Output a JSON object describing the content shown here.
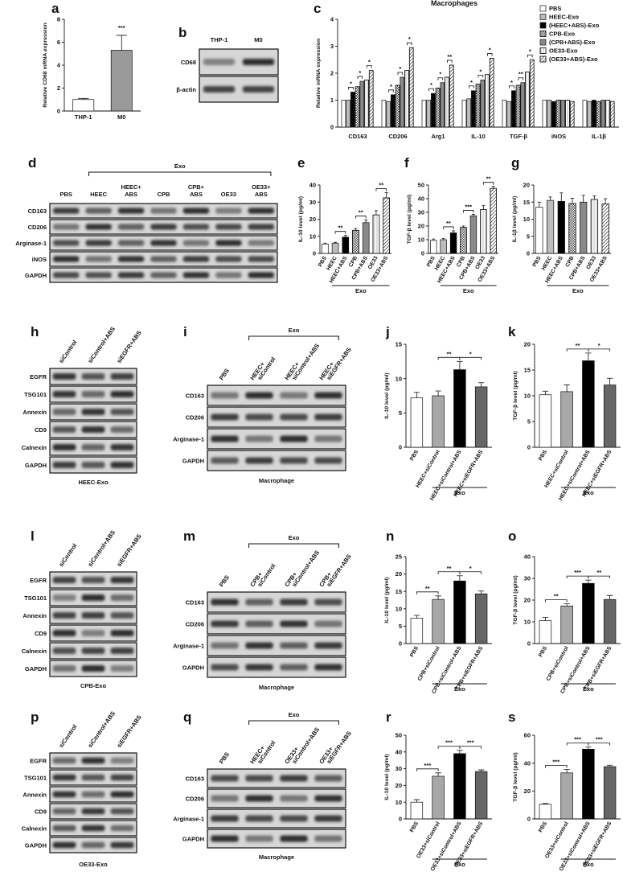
{
  "blots": [
    {
      "panel": "b",
      "columns": [
        [
          "THP-1"
        ],
        [
          "M0"
        ]
      ],
      "rows": [
        "CD68",
        "β-actin"
      ],
      "rotated_labels": false
    },
    {
      "panel": "d",
      "columns": [
        [
          "PBS"
        ],
        [
          "HEEC"
        ],
        [
          "HEEC+",
          "ABS"
        ],
        [
          "CPB"
        ],
        [
          "CPB+",
          "ABS"
        ],
        [
          "OE33"
        ],
        [
          "OE33+",
          "ABS"
        ]
      ],
      "rows": [
        "CD163",
        "CD206",
        "Arginase-1",
        "iNOS",
        "GAPDH"
      ],
      "rotated_labels": false,
      "group": {
        "label": "Exo",
        "from": 1,
        "to": 6
      }
    },
    {
      "panel": "h",
      "columns": [
        [
          "siControl"
        ],
        [
          "siControl+ABS"
        ],
        [
          "siEGFR+ABS"
        ]
      ],
      "rows": [
        "EGFR",
        "TSG101",
        "Annexin",
        "CD9",
        "Calnexin",
        "GAPDH"
      ],
      "rotated_labels": true,
      "caption": "HEEC-Exo"
    },
    {
      "panel": "i",
      "columns": [
        [
          "PBS"
        ],
        [
          "HEEC+",
          "siControl"
        ],
        [
          "HEEC+",
          "siControl+ABS"
        ],
        [
          "HEEC+",
          "siEGFR+ABS"
        ]
      ],
      "rows": [
        "CD163",
        "CD206",
        "Arginase-1",
        "GAPDH"
      ],
      "rotated_labels": true,
      "group": {
        "label": "Exo",
        "from": 1,
        "to": 3
      },
      "caption": "Macrophage"
    },
    {
      "panel": "l",
      "columns": [
        [
          "siControl"
        ],
        [
          "siControl+ABS"
        ],
        [
          "siEGFR+ABS"
        ]
      ],
      "rows": [
        "EGFR",
        "TSG101",
        "Annexin",
        "CD9",
        "Calnexin",
        "GAPDH"
      ],
      "rotated_labels": true,
      "caption": "CPB-Exo"
    },
    {
      "panel": "m",
      "columns": [
        [
          "PBS"
        ],
        [
          "CPB+",
          "siControl"
        ],
        [
          "CPB+",
          "siControl+ABS"
        ],
        [
          "CPB+",
          "siEGFR+ABS"
        ]
      ],
      "rows": [
        "CD163",
        "CD206",
        "Arginase-1",
        "GAPDH"
      ],
      "rotated_labels": true,
      "group": {
        "label": "Exo",
        "from": 1,
        "to": 3
      },
      "caption": "Macrophage"
    },
    {
      "panel": "p",
      "columns": [
        [
          "siControl"
        ],
        [
          "siControl+ABS"
        ],
        [
          "siEGFR+ABS"
        ]
      ],
      "rows": [
        "EGFR",
        "TSG101",
        "Annexin",
        "CD9",
        "Calnexin",
        "GAPDH"
      ],
      "rotated_labels": true,
      "caption": "OE33-Exo"
    },
    {
      "panel": "q",
      "columns": [
        [
          "PBS"
        ],
        [
          "HEEC+",
          "siControl"
        ],
        [
          "OE33+",
          "siControl+ABS"
        ],
        [
          "OE33+",
          "siEGFR+ABS"
        ]
      ],
      "rows": [
        "CD163",
        "CD206",
        "Arginase-1",
        "GAPDH"
      ],
      "rotated_labels": true,
      "group": {
        "label": "Exo",
        "from": 1,
        "to": 3
      },
      "caption": "Macrophage"
    }
  ],
  "chart_data": [
    {
      "type": "bar",
      "panel": "a",
      "ylabel": "Relative CD68 mRNA expression",
      "categories": [
        "THP-1",
        "M0"
      ],
      "values": [
        1,
        5.3
      ],
      "errors": [
        0.1,
        1.3
      ],
      "colors": [
        "#ffffff",
        "#9a9a9a"
      ],
      "patterns": [
        "solid",
        "solid"
      ],
      "ylim": [
        0,
        8
      ],
      "yticks": [
        0,
        2,
        4,
        6,
        8
      ],
      "rotated_labels": false,
      "annotations": [
        {
          "text": "***",
          "from": 1,
          "to": 1
        }
      ]
    },
    {
      "type": "grouped_bar",
      "panel": "c",
      "title": "Macrophages",
      "ylabel": "Relative mRNA expression",
      "categories": [
        "CD163",
        "CD206",
        "Arg1",
        "IL-10",
        "TGF-β",
        "iNOS",
        "IL-1β"
      ],
      "ylim": [
        0,
        4
      ],
      "yticks": [
        0,
        1,
        2,
        3,
        4
      ],
      "series": [
        {
          "name": "PBS",
          "color": "#ffffff",
          "pattern": "solid",
          "values": [
            1,
            1,
            1,
            1,
            1,
            1,
            1
          ]
        },
        {
          "name": "HEEC-Exo",
          "color": "#bdbdbd",
          "pattern": "solid",
          "values": [
            1,
            0.95,
            1,
            1.05,
            0.95,
            1,
            0.95
          ]
        },
        {
          "name": "(HEEC+ABS)-Exo",
          "color": "#000000",
          "pattern": "solid",
          "values": [
            1.3,
            1.2,
            1.25,
            1.35,
            1.35,
            0.95,
            1
          ]
        },
        {
          "name": "CPB-Exo",
          "color": "#ffffff",
          "pattern": "grid",
          "values": [
            1.5,
            1.55,
            1.45,
            1.6,
            1.55,
            1,
            0.95
          ]
        },
        {
          "name": "(CPB+ABS)-Exo",
          "color": "#8a8a8a",
          "pattern": "solid",
          "values": [
            1.7,
            1.85,
            1.65,
            1.75,
            1.65,
            1,
            1
          ]
        },
        {
          "name": "OE33-Exo",
          "color": "#ffffff",
          "pattern": "vlines",
          "values": [
            1.75,
            2.1,
            1.85,
            1.95,
            2.05,
            1,
            1
          ]
        },
        {
          "name": "(OE33+ABS)-Exo",
          "color": "#ffffff",
          "pattern": "hatch",
          "values": [
            2.1,
            2.95,
            2.3,
            2.55,
            2.5,
            0.95,
            0.95
          ]
        }
      ],
      "annotations": [
        {
          "category": 0,
          "from": 1,
          "to": 2,
          "text": "*"
        },
        {
          "category": 0,
          "from": 3,
          "to": 4,
          "text": "*"
        },
        {
          "category": 0,
          "from": 5,
          "to": 6,
          "text": "*"
        },
        {
          "category": 1,
          "from": 1,
          "to": 2,
          "text": "*"
        },
        {
          "category": 1,
          "from": 3,
          "to": 4,
          "text": "*"
        },
        {
          "category": 1,
          "from": 5,
          "to": 6,
          "text": "*"
        },
        {
          "category": 2,
          "from": 1,
          "to": 2,
          "text": "*"
        },
        {
          "category": 2,
          "from": 3,
          "to": 4,
          "text": "*"
        },
        {
          "category": 2,
          "from": 5,
          "to": 6,
          "text": "**"
        },
        {
          "category": 3,
          "from": 1,
          "to": 2,
          "text": "*"
        },
        {
          "category": 3,
          "from": 3,
          "to": 4,
          "text": "*"
        },
        {
          "category": 3,
          "from": 5,
          "to": 6,
          "text": "*"
        },
        {
          "category": 4,
          "from": 1,
          "to": 2,
          "text": "*"
        },
        {
          "category": 4,
          "from": 3,
          "to": 4,
          "text": "**"
        },
        {
          "category": 4,
          "from": 5,
          "to": 6,
          "text": "*"
        }
      ]
    },
    {
      "type": "bar",
      "panel": "e",
      "ylabel": "IL-10 level (pg/ml)",
      "categories": [
        "PBS",
        "HEEC",
        "HEEC+ABS",
        "CPB",
        "CPB+ABS",
        "OE33",
        "OE33+ABS"
      ],
      "values": [
        5.5,
        6,
        9.5,
        13.5,
        18,
        22.5,
        32.5
      ],
      "errors": [
        0.5,
        0.5,
        1,
        1,
        1.5,
        2.5,
        3
      ],
      "colors": [
        "#ffffff",
        "#bdbdbd",
        "#000000",
        "#ffffff",
        "#8a8a8a",
        "#ffffff",
        "#ffffff"
      ],
      "patterns": [
        "solid",
        "solid",
        "solid",
        "grid",
        "solid",
        "vlines",
        "hatch"
      ],
      "ylim": [
        0,
        40
      ],
      "yticks": [
        0,
        10,
        20,
        30,
        40
      ],
      "rotated_labels": true,
      "annotations": [
        {
          "text": "**",
          "from": 1,
          "to": 2
        },
        {
          "text": "**",
          "from": 3,
          "to": 4
        },
        {
          "text": "**",
          "from": 5,
          "to": 6
        }
      ],
      "group": {
        "label": "Exo",
        "from": 1,
        "to": 6
      }
    },
    {
      "type": "bar",
      "panel": "f",
      "ylabel": "TGF-β level (pg/ml)",
      "categories": [
        "PBS",
        "HEEC",
        "HEEC+ABS",
        "CPB",
        "CPB+ABS",
        "OE33",
        "OE33+ABS"
      ],
      "values": [
        9.5,
        10,
        15,
        19,
        27.5,
        32,
        47.5
      ],
      "errors": [
        1,
        0.8,
        1.5,
        1,
        1,
        3,
        1.5
      ],
      "colors": [
        "#ffffff",
        "#bdbdbd",
        "#000000",
        "#ffffff",
        "#8a8a8a",
        "#ffffff",
        "#ffffff"
      ],
      "patterns": [
        "solid",
        "solid",
        "solid",
        "grid",
        "solid",
        "vlines",
        "hatch"
      ],
      "ylim": [
        0,
        50
      ],
      "yticks": [
        0,
        10,
        20,
        30,
        40,
        50
      ],
      "rotated_labels": true,
      "annotations": [
        {
          "text": "**",
          "from": 1,
          "to": 2
        },
        {
          "text": "***",
          "from": 3,
          "to": 4
        },
        {
          "text": "**",
          "from": 5,
          "to": 6
        }
      ],
      "group": {
        "label": "Exo",
        "from": 1,
        "to": 6
      }
    },
    {
      "type": "bar",
      "panel": "g",
      "ylabel": "IL-1β level (pg/ml)",
      "categories": [
        "PBS",
        "HEEC",
        "HEEC+ABS",
        "CPB",
        "CPB+ABS",
        "OE33",
        "OE33+ABS"
      ],
      "values": [
        13.5,
        15.5,
        15.2,
        14.6,
        15,
        15.8,
        14.5
      ],
      "errors": [
        1.5,
        1,
        2.5,
        1.5,
        2,
        1,
        1.5
      ],
      "colors": [
        "#ffffff",
        "#bdbdbd",
        "#000000",
        "#ffffff",
        "#8a8a8a",
        "#ffffff",
        "#ffffff"
      ],
      "patterns": [
        "solid",
        "solid",
        "solid",
        "grid",
        "solid",
        "vlines",
        "hatch"
      ],
      "ylim": [
        0,
        20
      ],
      "yticks": [
        0,
        5,
        10,
        15,
        20
      ],
      "rotated_labels": true,
      "annotations": [],
      "group": {
        "label": "Exo",
        "from": 1,
        "to": 6
      }
    },
    {
      "type": "bar",
      "panel": "j",
      "ylabel": "IL-10 level (pg/ml)",
      "categories": [
        "PBS",
        "HEEC+siControl",
        "HEEC+siControl+ABS",
        "HEEC+siEGFR+ABS"
      ],
      "values": [
        7.2,
        7.5,
        11.3,
        8.8
      ],
      "errors": [
        0.8,
        0.7,
        1.2,
        0.6
      ],
      "colors": [
        "#ffffff",
        "#a8a8a8",
        "#000000",
        "#666666"
      ],
      "patterns": [
        "solid",
        "solid",
        "solid",
        "solid"
      ],
      "ylim": [
        0,
        15
      ],
      "yticks": [
        0,
        5,
        10,
        15
      ],
      "rotated_labels": true,
      "annotations": [
        {
          "text": "**",
          "from": 1,
          "to": 2
        },
        {
          "text": "*",
          "from": 2,
          "to": 3
        }
      ],
      "group": {
        "label": "Exo",
        "from": 1,
        "to": 3
      }
    },
    {
      "type": "bar",
      "panel": "k",
      "ylabel": "TGF-β level (pg/ml)",
      "categories": [
        "PBS",
        "HEEC+siControl",
        "HEEC+siControl+ABS",
        "HEEC+siEGFR+ABS"
      ],
      "values": [
        10.2,
        10.8,
        16.8,
        12.1
      ],
      "errors": [
        0.7,
        1.3,
        1.5,
        1.3
      ],
      "colors": [
        "#ffffff",
        "#a8a8a8",
        "#000000",
        "#666666"
      ],
      "patterns": [
        "solid",
        "solid",
        "solid",
        "solid"
      ],
      "ylim": [
        0,
        20
      ],
      "yticks": [
        0,
        5,
        10,
        15,
        20
      ],
      "rotated_labels": true,
      "annotations": [
        {
          "text": "**",
          "from": 1,
          "to": 2
        },
        {
          "text": "*",
          "from": 2,
          "to": 3
        }
      ],
      "group": {
        "label": "Exo",
        "from": 1,
        "to": 3
      }
    },
    {
      "type": "bar",
      "panel": "n",
      "ylabel": "IL-10 level (pg/ml)",
      "categories": [
        "PBS",
        "CPB+siControl",
        "CPB+siControl+ABS",
        "CPB+siEGFR+ABS"
      ],
      "values": [
        7.3,
        12.7,
        18,
        14.3
      ],
      "errors": [
        0.8,
        1,
        1.5,
        0.8
      ],
      "colors": [
        "#ffffff",
        "#a8a8a8",
        "#000000",
        "#666666"
      ],
      "patterns": [
        "solid",
        "solid",
        "solid",
        "solid"
      ],
      "ylim": [
        0,
        25
      ],
      "yticks": [
        0,
        5,
        10,
        15,
        20,
        25
      ],
      "rotated_labels": true,
      "annotations": [
        {
          "text": "**",
          "from": 0,
          "to": 1
        },
        {
          "text": "**",
          "from": 1,
          "to": 2
        },
        {
          "text": "*",
          "from": 2,
          "to": 3
        }
      ],
      "group": {
        "label": "Exo",
        "from": 1,
        "to": 3
      }
    },
    {
      "type": "bar",
      "panel": "o",
      "ylabel": "TGF-β level (pg/ml)",
      "categories": [
        "PBS",
        "CPB+siControl",
        "CPB+siControl+ABS",
        "CPB+siEGFR+ABS"
      ],
      "values": [
        10.5,
        17.3,
        27.7,
        20.3
      ],
      "errors": [
        1.5,
        1,
        1.5,
        1.8
      ],
      "colors": [
        "#ffffff",
        "#a8a8a8",
        "#000000",
        "#666666"
      ],
      "patterns": [
        "solid",
        "solid",
        "solid",
        "solid"
      ],
      "ylim": [
        0,
        40
      ],
      "yticks": [
        0,
        10,
        20,
        30,
        40
      ],
      "rotated_labels": true,
      "annotations": [
        {
          "text": "**",
          "from": 0,
          "to": 1
        },
        {
          "text": "***",
          "from": 1,
          "to": 2
        },
        {
          "text": "**",
          "from": 2,
          "to": 3
        }
      ],
      "group": {
        "label": "Exo",
        "from": 1,
        "to": 3
      }
    },
    {
      "type": "bar",
      "panel": "r",
      "ylabel": "IL-10 level (pg/ml)",
      "categories": [
        "PBS",
        "OE33+siControl",
        "OE33+siControl+ABS",
        "OE33+siEGFR+ABS"
      ],
      "values": [
        10,
        25.5,
        39,
        28.3
      ],
      "errors": [
        1.5,
        2,
        2,
        1
      ],
      "colors": [
        "#ffffff",
        "#a8a8a8",
        "#000000",
        "#666666"
      ],
      "patterns": [
        "solid",
        "solid",
        "solid",
        "solid"
      ],
      "ylim": [
        0,
        50
      ],
      "yticks": [
        0,
        10,
        20,
        30,
        40,
        50
      ],
      "rotated_labels": true,
      "annotations": [
        {
          "text": "***",
          "from": 0,
          "to": 1
        },
        {
          "text": "***",
          "from": 1,
          "to": 2
        },
        {
          "text": "***",
          "from": 2,
          "to": 3
        }
      ],
      "group": {
        "label": "Exo",
        "from": 1,
        "to": 3
      }
    },
    {
      "type": "bar",
      "panel": "s",
      "ylabel": "TGF-β level (pg/ml)",
      "categories": [
        "PBS",
        "OE33+siControl",
        "OE33+siControl+ABS",
        "OE33+siEGFR+ABS"
      ],
      "values": [
        10.5,
        33,
        50,
        37.5
      ],
      "errors": [
        0.5,
        2.5,
        1.5,
        1
      ],
      "colors": [
        "#ffffff",
        "#a8a8a8",
        "#000000",
        "#666666"
      ],
      "patterns": [
        "solid",
        "solid",
        "solid",
        "solid"
      ],
      "ylim": [
        0,
        60
      ],
      "yticks": [
        0,
        20,
        40,
        60
      ],
      "rotated_labels": true,
      "annotations": [
        {
          "text": "***",
          "from": 0,
          "to": 1
        },
        {
          "text": "***",
          "from": 1,
          "to": 2
        },
        {
          "text": "***",
          "from": 2,
          "to": 3
        }
      ],
      "group": {
        "label": "Exo",
        "from": 1,
        "to": 3
      }
    }
  ]
}
